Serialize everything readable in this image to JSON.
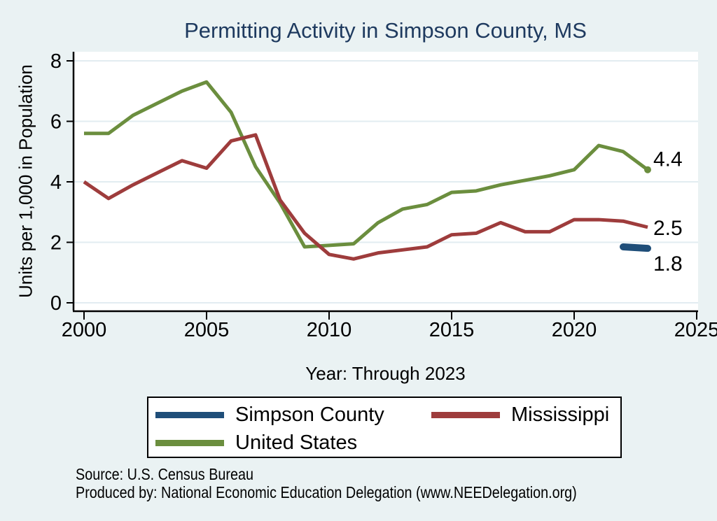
{
  "title": "Permitting Activity in Simpson County, MS",
  "axes": {
    "y_label": "Units per 1,000 in Population",
    "x_label": "Year: Through 2023",
    "y_ticks": [
      0,
      2,
      4,
      6,
      8
    ],
    "x_ticks": [
      2000,
      2005,
      2010,
      2015,
      2020,
      2025
    ]
  },
  "chart_data": {
    "type": "line",
    "title": "Permitting Activity in Simpson County, MS",
    "xlabel": "Year: Through 2023",
    "ylabel": "Units per 1,000 in Population",
    "xlim": [
      2000,
      2025
    ],
    "ylim": [
      0,
      8
    ],
    "grid": true,
    "legend_position": "bottom",
    "series": [
      {
        "name": "United States",
        "color": "#6b8e3e",
        "line_width": 5,
        "end_label": "4.4",
        "end_marker": true,
        "x": [
          2000,
          2001,
          2002,
          2003,
          2004,
          2005,
          2006,
          2007,
          2008,
          2009,
          2010,
          2011,
          2012,
          2013,
          2014,
          2015,
          2016,
          2017,
          2018,
          2019,
          2020,
          2021,
          2022,
          2023
        ],
        "values": [
          5.6,
          5.6,
          6.2,
          6.6,
          7.0,
          7.3,
          6.3,
          4.5,
          3.3,
          1.85,
          1.9,
          1.95,
          2.65,
          3.1,
          3.25,
          3.65,
          3.7,
          3.9,
          4.05,
          4.2,
          4.4,
          5.2,
          5.0,
          4.4
        ]
      },
      {
        "name": "Mississippi",
        "color": "#9e3c3c",
        "line_width": 5,
        "end_label": "2.5",
        "end_marker": false,
        "x": [
          2000,
          2001,
          2002,
          2003,
          2004,
          2005,
          2006,
          2007,
          2008,
          2009,
          2010,
          2011,
          2012,
          2013,
          2014,
          2015,
          2016,
          2017,
          2018,
          2019,
          2020,
          2021,
          2022,
          2023
        ],
        "values": [
          4.0,
          3.45,
          3.9,
          4.3,
          4.7,
          4.45,
          5.35,
          5.55,
          3.4,
          2.3,
          1.6,
          1.45,
          1.65,
          1.75,
          1.85,
          2.25,
          2.3,
          2.65,
          2.35,
          2.35,
          2.75,
          2.75,
          2.7,
          2.5
        ]
      },
      {
        "name": "Simpson County",
        "color": "#1f4e79",
        "line_width": 10,
        "end_label": "1.8",
        "end_marker": false,
        "round_cap": true,
        "x": [
          2022,
          2023
        ],
        "values": [
          1.85,
          1.8
        ]
      }
    ]
  },
  "legend": {
    "items": [
      {
        "label": "Simpson County",
        "color": "#1f4e79"
      },
      {
        "label": "Mississippi",
        "color": "#9e3c3c"
      },
      {
        "label": "United States",
        "color": "#6b8e3e"
      }
    ]
  },
  "footer": {
    "source": "Source: U.S. Census Bureau",
    "produced_by": "Produced by: National Economic Education Delegation (www.NEEDelegation.org)"
  },
  "colors": {
    "background": "#eaf2f3",
    "plot_background": "#ffffff",
    "gridline": "#e2ecf1",
    "axis": "#000000",
    "title": "#1e3a5f"
  }
}
